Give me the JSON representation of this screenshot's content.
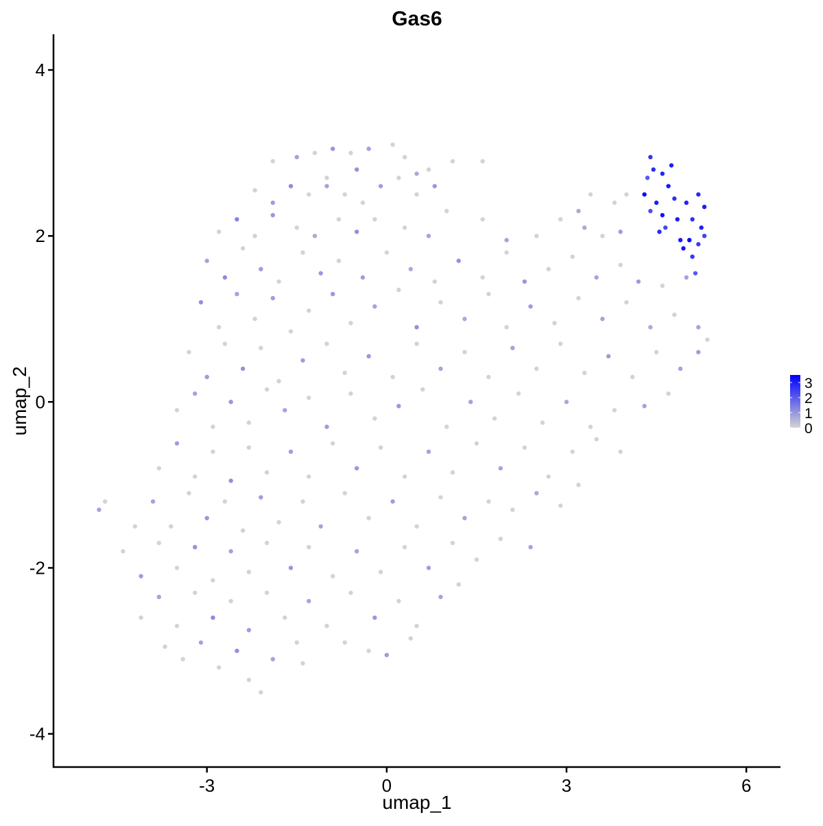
{
  "chart_data": {
    "type": "scatter",
    "title": "Gas6",
    "xlabel": "umap_1",
    "ylabel": "umap_2",
    "xlim": [
      -5.56,
      6.57
    ],
    "ylim": [
      -4.4,
      4.43
    ],
    "xticks": [
      -3,
      0,
      3,
      6
    ],
    "yticks": [
      -4,
      -2,
      0,
      2,
      4
    ],
    "grid": false,
    "legend": {
      "placement": "right",
      "ticks": [
        0,
        1,
        2,
        3
      ],
      "range": [
        0,
        3.5
      ],
      "low_color": "#D3D3D3",
      "high_color": "#0000FF"
    },
    "point_format": [
      "umap_1",
      "umap_2",
      "expression"
    ],
    "points": [
      [
        4.4,
        2.95,
        2.6
      ],
      [
        4.45,
        2.8,
        2.8
      ],
      [
        4.6,
        2.75,
        2.9
      ],
      [
        4.7,
        2.6,
        3.1
      ],
      [
        4.3,
        2.5,
        3.3
      ],
      [
        4.5,
        2.4,
        3.0
      ],
      [
        4.8,
        2.45,
        2.7
      ],
      [
        5.0,
        2.4,
        2.9
      ],
      [
        5.2,
        2.5,
        2.8
      ],
      [
        5.3,
        2.35,
        3.0
      ],
      [
        4.6,
        2.25,
        3.2
      ],
      [
        4.85,
        2.2,
        3.0
      ],
      [
        5.1,
        2.2,
        2.7
      ],
      [
        5.25,
        2.1,
        3.0
      ],
      [
        4.55,
        2.05,
        2.8
      ],
      [
        4.9,
        1.95,
        3.1
      ],
      [
        5.05,
        1.95,
        3.5
      ],
      [
        5.2,
        1.9,
        2.5
      ],
      [
        4.95,
        1.85,
        3.2
      ],
      [
        5.1,
        1.75,
        2.6
      ],
      [
        5.3,
        2.0,
        2.4
      ],
      [
        4.75,
        2.85,
        3.0
      ],
      [
        4.65,
        2.1,
        2.3
      ],
      [
        5.15,
        1.55,
        2.0
      ],
      [
        4.35,
        2.7,
        2.0
      ],
      [
        4.4,
        2.3,
        2.2
      ],
      [
        -1.9,
        2.9,
        0
      ],
      [
        -1.5,
        2.95,
        0.8
      ],
      [
        -1.2,
        3.0,
        0
      ],
      [
        -0.9,
        3.05,
        1.0
      ],
      [
        -0.6,
        3.0,
        0
      ],
      [
        -0.3,
        3.05,
        0.8
      ],
      [
        0.1,
        3.1,
        0
      ],
      [
        0.3,
        2.95,
        0
      ],
      [
        0.5,
        2.75,
        0.7
      ],
      [
        0.7,
        2.8,
        0
      ],
      [
        1.1,
        2.9,
        0
      ],
      [
        1.6,
        2.9,
        0
      ],
      [
        -0.5,
        2.8,
        1.1
      ],
      [
        -1.0,
        2.7,
        0
      ],
      [
        -2.2,
        2.55,
        0
      ],
      [
        -1.9,
        2.4,
        0.9
      ],
      [
        -1.6,
        2.6,
        1.2
      ],
      [
        -1.3,
        2.5,
        0
      ],
      [
        -1.0,
        2.6,
        0.8
      ],
      [
        -0.7,
        2.5,
        0
      ],
      [
        -0.4,
        2.4,
        0
      ],
      [
        -0.1,
        2.6,
        0.9
      ],
      [
        0.2,
        2.7,
        0
      ],
      [
        0.5,
        2.5,
        0
      ],
      [
        0.8,
        2.6,
        1.0
      ],
      [
        3.4,
        2.5,
        0
      ],
      [
        3.8,
        2.4,
        0
      ],
      [
        4.0,
        2.5,
        0
      ],
      [
        3.2,
        2.3,
        0.7
      ],
      [
        -2.8,
        2.05,
        0
      ],
      [
        -2.5,
        2.2,
        1.3
      ],
      [
        -2.2,
        2.0,
        0
      ],
      [
        -1.9,
        2.25,
        1.0
      ],
      [
        -1.5,
        2.1,
        0
      ],
      [
        -1.2,
        2.0,
        0.7
      ],
      [
        -0.8,
        2.2,
        0
      ],
      [
        -0.5,
        2.05,
        1.1
      ],
      [
        -0.2,
        2.2,
        0
      ],
      [
        0.3,
        2.1,
        0
      ],
      [
        0.7,
        2.0,
        0.8
      ],
      [
        1.0,
        2.3,
        0
      ],
      [
        1.6,
        2.2,
        0
      ],
      [
        2.0,
        1.95,
        0.8
      ],
      [
        2.5,
        2.0,
        0
      ],
      [
        2.9,
        2.2,
        0
      ],
      [
        3.3,
        2.1,
        0.7
      ],
      [
        3.6,
        2.0,
        0
      ],
      [
        3.9,
        2.05,
        0.9
      ],
      [
        -3.0,
        1.7,
        0.8
      ],
      [
        -2.7,
        1.5,
        1.2
      ],
      [
        -2.4,
        1.85,
        0
      ],
      [
        -2.1,
        1.6,
        0.9
      ],
      [
        -1.8,
        1.45,
        0
      ],
      [
        -1.4,
        1.8,
        0
      ],
      [
        -1.1,
        1.55,
        1.0
      ],
      [
        -0.8,
        1.7,
        0
      ],
      [
        -0.4,
        1.5,
        0.9
      ],
      [
        0.0,
        1.8,
        0
      ],
      [
        0.4,
        1.6,
        0.7
      ],
      [
        0.8,
        1.45,
        0
      ],
      [
        1.2,
        1.7,
        1.1
      ],
      [
        1.6,
        1.5,
        0
      ],
      [
        2.0,
        1.8,
        0
      ],
      [
        2.3,
        1.45,
        1.0
      ],
      [
        2.7,
        1.6,
        0
      ],
      [
        3.1,
        1.75,
        0
      ],
      [
        3.5,
        1.5,
        0.8
      ],
      [
        3.9,
        1.65,
        0
      ],
      [
        4.2,
        1.45,
        0.9
      ],
      [
        4.6,
        1.4,
        0
      ],
      [
        5.0,
        1.5,
        0.8
      ],
      [
        -3.1,
        1.2,
        1.1
      ],
      [
        -2.8,
        0.9,
        0
      ],
      [
        -2.5,
        1.3,
        0.8
      ],
      [
        -2.2,
        1.0,
        0
      ],
      [
        -1.9,
        1.25,
        0.9
      ],
      [
        -1.6,
        0.85,
        0
      ],
      [
        -1.3,
        1.1,
        0
      ],
      [
        -0.9,
        1.3,
        1.0
      ],
      [
        -0.6,
        0.95,
        0
      ],
      [
        -0.2,
        1.15,
        0.8
      ],
      [
        0.2,
        1.35,
        0
      ],
      [
        0.5,
        0.9,
        1.1
      ],
      [
        0.9,
        1.2,
        0
      ],
      [
        1.3,
        1.0,
        0.7
      ],
      [
        1.7,
        1.3,
        0
      ],
      [
        2.0,
        0.9,
        0
      ],
      [
        2.4,
        1.15,
        0.9
      ],
      [
        2.8,
        0.95,
        0
      ],
      [
        3.2,
        1.25,
        0
      ],
      [
        3.6,
        1.0,
        0.8
      ],
      [
        4.0,
        1.2,
        0
      ],
      [
        4.4,
        0.9,
        0.7
      ],
      [
        4.8,
        1.05,
        0
      ],
      [
        5.2,
        0.9,
        0.8
      ],
      [
        5.35,
        0.75,
        0
      ],
      [
        -3.3,
        0.6,
        0
      ],
      [
        -3.0,
        0.3,
        0.9
      ],
      [
        -2.7,
        0.7,
        0
      ],
      [
        -2.4,
        0.4,
        1.1
      ],
      [
        -2.1,
        0.65,
        0
      ],
      [
        -1.8,
        0.25,
        0
      ],
      [
        -1.4,
        0.5,
        0.9
      ],
      [
        -1.0,
        0.7,
        0
      ],
      [
        -0.7,
        0.35,
        0
      ],
      [
        -0.3,
        0.55,
        1.0
      ],
      [
        0.1,
        0.3,
        0
      ],
      [
        0.5,
        0.7,
        0
      ],
      [
        0.9,
        0.4,
        0.8
      ],
      [
        1.3,
        0.6,
        0
      ],
      [
        1.7,
        0.3,
        0
      ],
      [
        2.1,
        0.65,
        0.8
      ],
      [
        2.5,
        0.4,
        0
      ],
      [
        2.9,
        0.7,
        0
      ],
      [
        3.3,
        0.35,
        0
      ],
      [
        3.7,
        0.55,
        0.9
      ],
      [
        4.1,
        0.3,
        0
      ],
      [
        4.5,
        0.6,
        0
      ],
      [
        4.9,
        0.4,
        0.8
      ],
      [
        5.2,
        0.6,
        0.9
      ],
      [
        -3.5,
        -0.1,
        0
      ],
      [
        -3.2,
        0.1,
        0.8
      ],
      [
        -2.9,
        -0.3,
        0
      ],
      [
        -2.6,
        0.0,
        1.0
      ],
      [
        -2.3,
        -0.25,
        0
      ],
      [
        -2.0,
        0.15,
        0
      ],
      [
        -1.7,
        -0.1,
        0.8
      ],
      [
        -1.3,
        0.05,
        0
      ],
      [
        -1.0,
        -0.3,
        0.9
      ],
      [
        -0.6,
        0.1,
        0
      ],
      [
        -0.2,
        -0.2,
        0
      ],
      [
        0.2,
        -0.05,
        1.0
      ],
      [
        0.6,
        0.15,
        0
      ],
      [
        1.0,
        -0.3,
        0
      ],
      [
        1.4,
        0.0,
        0.8
      ],
      [
        1.8,
        -0.2,
        0
      ],
      [
        2.2,
        0.1,
        0
      ],
      [
        2.6,
        -0.25,
        0
      ],
      [
        3.0,
        0.0,
        0.7
      ],
      [
        3.4,
        -0.3,
        0
      ],
      [
        3.8,
        -0.1,
        0
      ],
      [
        4.3,
        -0.05,
        0.8
      ],
      [
        4.7,
        0.1,
        0
      ],
      [
        -3.8,
        -0.8,
        0
      ],
      [
        -3.5,
        -0.5,
        0.9
      ],
      [
        -3.2,
        -0.9,
        0
      ],
      [
        -2.9,
        -0.6,
        0
      ],
      [
        -2.6,
        -0.95,
        1.1
      ],
      [
        -2.3,
        -0.55,
        0
      ],
      [
        -2.0,
        -0.85,
        0
      ],
      [
        -1.6,
        -0.6,
        0.9
      ],
      [
        -1.3,
        -0.9,
        0
      ],
      [
        -0.9,
        -0.5,
        0
      ],
      [
        -0.5,
        -0.8,
        1.0
      ],
      [
        -0.1,
        -0.55,
        0
      ],
      [
        0.3,
        -0.9,
        0
      ],
      [
        0.7,
        -0.6,
        0.8
      ],
      [
        1.1,
        -0.85,
        0
      ],
      [
        1.5,
        -0.5,
        0
      ],
      [
        1.9,
        -0.8,
        0.8
      ],
      [
        2.3,
        -0.55,
        0
      ],
      [
        2.7,
        -0.9,
        0
      ],
      [
        3.1,
        -0.6,
        0
      ],
      [
        3.5,
        -0.45,
        0
      ],
      [
        3.9,
        -0.6,
        0
      ],
      [
        -4.8,
        -1.3,
        0.8
      ],
      [
        -4.7,
        -1.2,
        0
      ],
      [
        -4.2,
        -1.5,
        0
      ],
      [
        -3.9,
        -1.2,
        0.8
      ],
      [
        -3.6,
        -1.5,
        0
      ],
      [
        -3.3,
        -1.1,
        0
      ],
      [
        -3.0,
        -1.4,
        1.0
      ],
      [
        -2.7,
        -1.2,
        0
      ],
      [
        -2.4,
        -1.55,
        0
      ],
      [
        -2.1,
        -1.15,
        0.9
      ],
      [
        -1.8,
        -1.45,
        0
      ],
      [
        -1.4,
        -1.2,
        0
      ],
      [
        -1.1,
        -1.5,
        0.8
      ],
      [
        -0.7,
        -1.1,
        0
      ],
      [
        -0.3,
        -1.4,
        0
      ],
      [
        0.1,
        -1.2,
        0.9
      ],
      [
        0.5,
        -1.5,
        0
      ],
      [
        0.9,
        -1.15,
        0
      ],
      [
        1.3,
        -1.4,
        0.8
      ],
      [
        1.7,
        -1.2,
        0
      ],
      [
        2.1,
        -1.3,
        0
      ],
      [
        2.5,
        -1.1,
        0.7
      ],
      [
        2.9,
        -1.25,
        0
      ],
      [
        3.2,
        -1.0,
        0
      ],
      [
        -4.4,
        -1.8,
        0
      ],
      [
        -4.1,
        -2.1,
        0.9
      ],
      [
        -3.8,
        -1.7,
        0
      ],
      [
        -3.5,
        -2.0,
        0
      ],
      [
        -3.2,
        -1.75,
        1.1
      ],
      [
        -2.9,
        -2.15,
        0
      ],
      [
        -2.6,
        -1.8,
        0.8
      ],
      [
        -2.3,
        -2.05,
        0
      ],
      [
        -2.0,
        -1.7,
        0
      ],
      [
        -1.6,
        -2.0,
        1.0
      ],
      [
        -1.3,
        -1.75,
        0
      ],
      [
        -0.9,
        -2.1,
        0
      ],
      [
        -0.5,
        -1.8,
        0.8
      ],
      [
        -0.1,
        -2.05,
        0
      ],
      [
        0.3,
        -1.75,
        0
      ],
      [
        0.7,
        -2.0,
        0.9
      ],
      [
        1.1,
        -1.7,
        0
      ],
      [
        1.5,
        -1.9,
        0
      ],
      [
        1.9,
        -1.65,
        0
      ],
      [
        2.4,
        -1.75,
        0.8
      ],
      [
        -4.1,
        -2.6,
        0
      ],
      [
        -3.8,
        -2.35,
        0.8
      ],
      [
        -3.5,
        -2.7,
        0
      ],
      [
        -3.2,
        -2.3,
        0
      ],
      [
        -2.9,
        -2.6,
        1.2
      ],
      [
        -2.6,
        -2.4,
        0
      ],
      [
        -2.3,
        -2.75,
        0.9
      ],
      [
        -2.0,
        -2.3,
        0
      ],
      [
        -1.7,
        -2.6,
        0
      ],
      [
        -1.3,
        -2.4,
        0.8
      ],
      [
        -1.0,
        -2.7,
        0
      ],
      [
        -0.6,
        -2.3,
        0
      ],
      [
        -0.2,
        -2.6,
        1.0
      ],
      [
        0.2,
        -2.4,
        0
      ],
      [
        0.5,
        -2.7,
        0
      ],
      [
        0.9,
        -2.35,
        0.8
      ],
      [
        1.2,
        -2.2,
        0
      ],
      [
        -3.7,
        -2.95,
        0
      ],
      [
        -3.4,
        -3.1,
        0
      ],
      [
        -3.1,
        -2.9,
        0.8
      ],
      [
        -2.8,
        -3.2,
        0
      ],
      [
        -2.5,
        -3.0,
        1.1
      ],
      [
        -2.3,
        -3.35,
        0
      ],
      [
        -2.1,
        -3.5,
        0
      ],
      [
        -1.9,
        -3.1,
        0.8
      ],
      [
        -1.5,
        -2.9,
        0
      ],
      [
        -1.4,
        -3.15,
        0
      ],
      [
        -0.7,
        -2.9,
        0
      ],
      [
        -0.3,
        -3.0,
        0
      ],
      [
        0.0,
        -3.05,
        0.9
      ],
      [
        0.4,
        -2.85,
        0
      ]
    ]
  }
}
